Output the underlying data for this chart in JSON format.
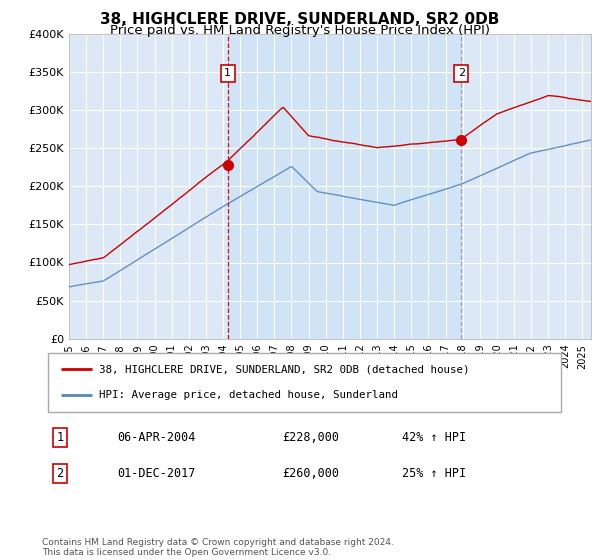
{
  "title": "38, HIGHCLERE DRIVE, SUNDERLAND, SR2 0DB",
  "subtitle": "Price paid vs. HM Land Registry's House Price Index (HPI)",
  "ylim": [
    0,
    400000
  ],
  "yticks": [
    0,
    50000,
    100000,
    150000,
    200000,
    250000,
    300000,
    350000,
    400000
  ],
  "background_color": "#dce8f5",
  "shaded_color": "#d0e4f5",
  "red_line_color": "#cc0000",
  "blue_line_color": "#5588bb",
  "vline1_color": "#cc0000",
  "vline2_color": "#8899bb",
  "sale1_date": 2004.28,
  "sale1_price": 228000,
  "sale1_label": "1",
  "sale2_date": 2017.92,
  "sale2_price": 260000,
  "sale2_label": "2",
  "legend_red": "38, HIGHCLERE DRIVE, SUNDERLAND, SR2 0DB (detached house)",
  "legend_blue": "HPI: Average price, detached house, Sunderland",
  "table_row1": [
    "1",
    "06-APR-2004",
    "£228,000",
    "42% ↑ HPI"
  ],
  "table_row2": [
    "2",
    "01-DEC-2017",
    "£260,000",
    "25% ↑ HPI"
  ],
  "footer": "Contains HM Land Registry data © Crown copyright and database right 2024.\nThis data is licensed under the Open Government Licence v3.0.",
  "title_fontsize": 11,
  "subtitle_fontsize": 9.5
}
